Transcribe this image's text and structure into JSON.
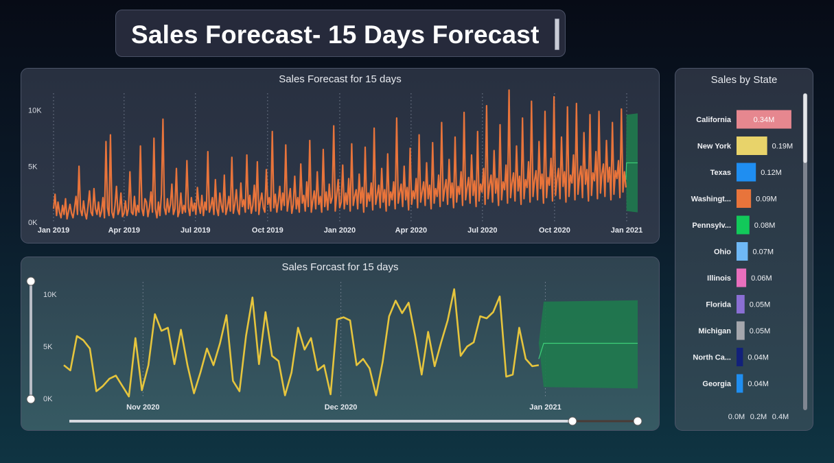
{
  "header": {
    "title": "Sales Forecast- 15 Days Forecast"
  },
  "colors": {
    "actual_top": "#e8743b",
    "actual_bottom": "#e6c53d",
    "forecast": "#1f7a4e",
    "forecast_line": "#3fd17a"
  },
  "chart_data": [
    {
      "type": "line",
      "title": "Sales Forecast for 15 days",
      "x_tick_labels": [
        "Jan 2019",
        "Apr 2019",
        "Jul 2019",
        "Oct 2019",
        "Jan 2020",
        "Apr 2020",
        "Jul 2020",
        "Oct 2020",
        "Jan 2021"
      ],
      "y_tick_labels": [
        "0K",
        "5K",
        "10K"
      ],
      "ylim": [
        0,
        12000
      ],
      "x_range": [
        "2019-01-01",
        "2021-01-15"
      ],
      "forecast": {
        "start": "2020-12-31",
        "end": "2021-01-15",
        "value": 5300,
        "lower": 1000,
        "upper": 9600
      },
      "series": [
        {
          "values": [
            1200,
            2500,
            600,
            1800,
            900,
            400,
            1500,
            700,
            2100,
            300,
            950,
            1600,
            800,
            400,
            1250,
            2300,
            700,
            5000,
            1100,
            600,
            1900,
            850,
            300,
            1400,
            2800,
            900,
            600,
            3000,
            1200,
            700,
            1800,
            500,
            1000,
            2200,
            400,
            7200,
            1300,
            600,
            7800,
            900,
            400,
            1500,
            3200,
            700,
            1100,
            2600,
            500,
            800,
            1900,
            600,
            1200,
            4500,
            900,
            700,
            2300,
            600,
            1500,
            900,
            6800,
            1200,
            600,
            2100,
            1800,
            500,
            1300,
            2700,
            900,
            7500,
            1200,
            400,
            1800,
            600,
            2500,
            9200,
            1300,
            700,
            2100,
            900,
            1600,
            3400,
            700,
            1200,
            4800,
            500,
            1000,
            2600,
            800,
            1500,
            900,
            5500,
            1300,
            600,
            2200,
            1000,
            1700,
            700,
            3100,
            1500,
            800,
            2400,
            600,
            1800,
            1100,
            6300,
            900,
            1400,
            2200,
            700,
            3800,
            1200,
            600,
            2600,
            1500,
            900,
            4200,
            700,
            1300,
            2300,
            1000,
            5800,
            800,
            1600,
            2900,
            1100,
            700,
            3500,
            1400,
            2000,
            900,
            6000,
            1200,
            2400,
            800,
            1500,
            3300,
            1000,
            5400,
            700,
            1800,
            2600,
            1300,
            900,
            4700,
            1600,
            2200,
            1000,
            8100,
            1300,
            2500,
            900,
            1800,
            3200,
            1100,
            2600,
            1500,
            6900,
            1000,
            2000,
            3000,
            800,
            1600,
            4100,
            1200,
            2200,
            900,
            5200,
            1700,
            2400,
            1000,
            3600,
            1400,
            7300,
            900,
            1900,
            2800,
            1200,
            4500,
            1600,
            2300,
            900,
            6500,
            1400,
            2700,
            1100,
            3400,
            1700,
            2200,
            8600,
            1000,
            2500,
            3800,
            1300,
            1800,
            5100,
            1200,
            2600,
            1600,
            3900,
            1000,
            7000,
            1500,
            2300,
            2900,
            1200,
            4300,
            1700,
            3100,
            900,
            6700,
            1400,
            2600,
            1900,
            3500,
            1100,
            8400,
            1600,
            2400,
            3300,
            1300,
            4800,
            1800,
            2900,
            1000,
            6100,
            1500,
            2700,
            2000,
            3600,
            1200,
            9300,
            1700,
            2600,
            3400,
            1400,
            5000,
            2000,
            3100,
            1100,
            6600,
            1600,
            2800,
            2100,
            3900,
            1300,
            7800,
            1800,
            2700,
            3600,
            1500,
            5300,
            2100,
            3300,
            1200,
            7100,
            1700,
            3000,
            2300,
            4200,
            1400,
            8900,
            1900,
            2900,
            3800,
            1600,
            5600,
            2200,
            3500,
            1300,
            7600,
            1800,
            3200,
            2500,
            4500,
            1500,
            9800,
            2000,
            3100,
            4000,
            1700,
            6000,
            2400,
            3700,
            1400,
            8100,
            1900,
            3400,
            2700,
            4800,
            1600,
            10400,
            2100,
            3300,
            4200,
            1800,
            6400,
            2600,
            3900,
            1500,
            8700,
            2000,
            3600,
            2900,
            5100,
            1700,
            11800,
            2200,
            3500,
            4400,
            1900,
            6800,
            2800,
            4100,
            1600,
            9300,
            2100,
            3800,
            3100,
            5400,
            1800,
            10800,
            2300,
            3700,
            4600,
            2000,
            7200,
            3000,
            4300,
            1700,
            9900,
            2200,
            4000,
            3300,
            5700,
            1900,
            11200,
            2400,
            3900,
            4800,
            2100,
            7600,
            3200,
            4500,
            1800,
            10300,
            2300,
            4200,
            3500,
            6000,
            2000,
            10600,
            2500,
            4100,
            5000,
            2200,
            8000,
            3400,
            4700,
            1900,
            9600,
            2400,
            4400,
            3700,
            6300,
            2100,
            9900,
            2600,
            4300,
            5200,
            2300,
            7300,
            3600,
            4900,
            2000,
            8900,
            2500,
            4600,
            3900,
            5500,
            2200,
            10100,
            2700,
            4500,
            3100
          ]
        }
      ]
    },
    {
      "type": "line",
      "title": "Sales Forcast for 15 days",
      "x_tick_labels": [
        "Nov 2020",
        "Dec 2020",
        "Jan 2021"
      ],
      "y_tick_labels": [
        "0K",
        "5K",
        "10K"
      ],
      "ylim": [
        0,
        11000
      ],
      "x_range": [
        "2020-10-20",
        "2021-01-15"
      ],
      "forecast": {
        "start": "2020-12-31",
        "end": "2021-01-15",
        "value": 5300,
        "lower": 1100,
        "upper": 9300
      },
      "series": [
        {
          "values": [
            3200,
            2700,
            6000,
            5600,
            4800,
            700,
            1200,
            1900,
            2200,
            1200,
            200,
            5800,
            800,
            3200,
            8100,
            6500,
            6800,
            3300,
            6600,
            3200,
            500,
            2500,
            4800,
            3200,
            5300,
            8000,
            1700,
            700,
            6000,
            9700,
            3300,
            8300,
            4100,
            3600,
            300,
            2500,
            6800,
            4700,
            5800,
            2700,
            3200,
            400,
            7600,
            7800,
            7500,
            3200,
            3800,
            2900,
            300,
            3500,
            7900,
            9400,
            8200,
            9200,
            6000,
            2300,
            6400,
            3100,
            5400,
            7500,
            10500,
            4100,
            5000,
            5400,
            7900,
            7700,
            8300,
            9800,
            2100,
            2300,
            6800,
            3800,
            3100,
            3200
          ]
        }
      ]
    },
    {
      "type": "bar",
      "orientation": "horizontal",
      "title": "Sales by State",
      "categories": [
        "California",
        "New York",
        "Texas",
        "Washingt...",
        "Pennsylv...",
        "Ohio",
        "Illinois",
        "Florida",
        "Michigan",
        "North Ca...",
        "Georgia"
      ],
      "values": [
        0.34,
        0.19,
        0.12,
        0.09,
        0.08,
        0.07,
        0.06,
        0.05,
        0.05,
        0.04,
        0.04
      ],
      "data_labels": [
        "0.34M",
        "0.19M",
        "0.12M",
        "0.09M",
        "0.08M",
        "0.07M",
        "0.06M",
        "0.05M",
        "0.05M",
        "0.04M",
        "0.04M"
      ],
      "colors": [
        "#e6878f",
        "#e8d36a",
        "#1f8ef1",
        "#e8743b",
        "#12c95a",
        "#6fb8f5",
        "#e86fbd",
        "#8a6fd4",
        "#a5a7ad",
        "#12217a",
        "#1f8ef1"
      ],
      "x_tick_labels": [
        "0.0M",
        "0.2M",
        "0.4M"
      ],
      "xlim": [
        0,
        0.4
      ]
    }
  ]
}
